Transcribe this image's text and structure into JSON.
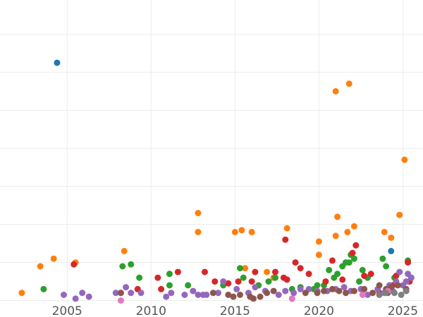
{
  "chart_data": {
    "type": "scatter",
    "title": "",
    "xlabel": "",
    "ylabel": "",
    "xlim": [
      2001.0,
      2026.2
    ],
    "ylim": [
      -1,
      79
    ],
    "x_ticks": [
      "2005",
      "2010",
      "2015",
      "2020",
      "2025"
    ],
    "x_tick_values": [
      2005,
      2010,
      2015,
      2020,
      2025
    ],
    "y_gridlines": [
      0,
      10,
      20,
      30,
      40,
      50,
      60,
      70
    ],
    "grid": true,
    "legend": "none",
    "series": [
      {
        "color": "#ff7f0e",
        "points": [
          [
            2002.3,
            2
          ],
          [
            2003.4,
            9
          ],
          [
            2004.2,
            11
          ],
          [
            2005.5,
            10
          ],
          [
            2008.4,
            13
          ],
          [
            2012.8,
            23
          ],
          [
            2012.8,
            18
          ],
          [
            2015.0,
            18
          ],
          [
            2015.4,
            18.5
          ],
          [
            2016.0,
            18
          ],
          [
            2015.6,
            8.5
          ],
          [
            2016.9,
            7.5
          ],
          [
            2017.3,
            6
          ],
          [
            2018.1,
            19
          ],
          [
            2020.0,
            15.5
          ],
          [
            2020.0,
            12
          ],
          [
            2021.0,
            55
          ],
          [
            2021.0,
            17
          ],
          [
            2021.1,
            22
          ],
          [
            2021.7,
            18
          ],
          [
            2021.8,
            57
          ],
          [
            2022.1,
            19.5
          ],
          [
            2023.9,
            18
          ],
          [
            2024.3,
            16.5
          ],
          [
            2024.8,
            22.5
          ],
          [
            2025.1,
            37
          ]
        ]
      },
      {
        "color": "#1f77b4",
        "points": [
          [
            2004.4,
            62.5
          ],
          [
            2024.3,
            13
          ]
        ]
      },
      {
        "color": "#2ca02c",
        "points": [
          [
            2003.6,
            3
          ],
          [
            2008.3,
            9
          ],
          [
            2008.8,
            9.5
          ],
          [
            2009.3,
            6
          ],
          [
            2011.1,
            7
          ],
          [
            2011.1,
            4
          ],
          [
            2012.2,
            4
          ],
          [
            2014.3,
            4
          ],
          [
            2015.3,
            8.5
          ],
          [
            2015.5,
            6
          ],
          [
            2016.4,
            4
          ],
          [
            2017.0,
            5
          ],
          [
            2017.4,
            6
          ],
          [
            2018.4,
            3
          ],
          [
            2018.9,
            3.5
          ],
          [
            2019.7,
            3
          ],
          [
            2019.9,
            4
          ],
          [
            2020.3,
            4
          ],
          [
            2020.6,
            8
          ],
          [
            2020.9,
            6
          ],
          [
            2021.1,
            7
          ],
          [
            2021.4,
            9
          ],
          [
            2021.6,
            10
          ],
          [
            2021.8,
            10
          ],
          [
            2021.9,
            12
          ],
          [
            2022.1,
            11
          ],
          [
            2022.4,
            5
          ],
          [
            2022.6,
            8
          ],
          [
            2022.9,
            6
          ],
          [
            2023.8,
            11
          ],
          [
            2024.0,
            9
          ],
          [
            2024.5,
            6
          ],
          [
            2025.3,
            10.5
          ],
          [
            2025.5,
            6
          ]
        ]
      },
      {
        "color": "#d62728",
        "points": [
          [
            2005.4,
            9.5
          ],
          [
            2009.2,
            3
          ],
          [
            2010.4,
            6
          ],
          [
            2010.6,
            3
          ],
          [
            2011.6,
            7.5
          ],
          [
            2013.2,
            7.5
          ],
          [
            2013.8,
            5
          ],
          [
            2014.6,
            4.5
          ],
          [
            2015.2,
            5
          ],
          [
            2016.0,
            5
          ],
          [
            2016.2,
            7.5
          ],
          [
            2017.4,
            7.5
          ],
          [
            2017.9,
            6
          ],
          [
            2018.0,
            16
          ],
          [
            2018.1,
            5.5
          ],
          [
            2018.6,
            10
          ],
          [
            2018.9,
            8.5
          ],
          [
            2019.4,
            7
          ],
          [
            2020.4,
            5
          ],
          [
            2020.8,
            10.5
          ],
          [
            2021.4,
            5.5
          ],
          [
            2022.0,
            12.5
          ],
          [
            2022.2,
            14.5
          ],
          [
            2022.7,
            6.5
          ],
          [
            2023.1,
            7
          ],
          [
            2023.6,
            2
          ],
          [
            2024.1,
            2
          ],
          [
            2024.4,
            4
          ],
          [
            2024.6,
            6.5
          ],
          [
            2025.3,
            10
          ],
          [
            2025.4,
            5
          ]
        ]
      },
      {
        "color": "#9467bd",
        "points": [
          [
            2004.8,
            1.5
          ],
          [
            2005.5,
            0.5
          ],
          [
            2005.9,
            2
          ],
          [
            2006.3,
            1
          ],
          [
            2007.9,
            2
          ],
          [
            2008.2,
            2
          ],
          [
            2008.5,
            3.5
          ],
          [
            2008.8,
            2
          ],
          [
            2009.4,
            2
          ],
          [
            2010.9,
            1
          ],
          [
            2011.2,
            2
          ],
          [
            2012.0,
            1.5
          ],
          [
            2012.5,
            2.5
          ],
          [
            2012.8,
            1.5
          ],
          [
            2013.1,
            1.5
          ],
          [
            2013.3,
            1.5
          ],
          [
            2014.0,
            2
          ],
          [
            2014.3,
            5
          ],
          [
            2015.1,
            3
          ],
          [
            2015.8,
            2
          ],
          [
            2016.2,
            3.5
          ],
          [
            2016.8,
            2.5
          ],
          [
            2017.6,
            1.5
          ],
          [
            2018.0,
            2.5
          ],
          [
            2018.5,
            2
          ],
          [
            2018.9,
            3
          ],
          [
            2019.4,
            3
          ],
          [
            2019.9,
            2.5
          ],
          [
            2020.5,
            2.5
          ],
          [
            2021.0,
            3
          ],
          [
            2021.5,
            3.5
          ],
          [
            2021.9,
            2.5
          ],
          [
            2022.5,
            3
          ],
          [
            2022.9,
            1.5
          ],
          [
            2023.5,
            3
          ],
          [
            2023.9,
            2
          ],
          [
            2024.2,
            4
          ],
          [
            2024.4,
            2.5
          ],
          [
            2024.6,
            5
          ],
          [
            2024.8,
            7.5
          ],
          [
            2025.0,
            4
          ],
          [
            2025.2,
            5
          ],
          [
            2025.3,
            7
          ],
          [
            2025.5,
            6
          ]
        ]
      },
      {
        "color": "#8c564b",
        "points": [
          [
            2008.2,
            2
          ],
          [
            2013.7,
            2
          ],
          [
            2014.6,
            1.5
          ],
          [
            2014.9,
            1
          ],
          [
            2015.3,
            1.5
          ],
          [
            2015.9,
            1
          ],
          [
            2016.1,
            0.5
          ],
          [
            2016.5,
            1
          ],
          [
            2016.9,
            2
          ],
          [
            2017.3,
            2.5
          ],
          [
            2018.4,
            0.5
          ],
          [
            2019.2,
            2
          ],
          [
            2019.9,
            2
          ],
          [
            2020.3,
            2.5
          ],
          [
            2020.8,
            3
          ],
          [
            2021.2,
            2.5
          ],
          [
            2021.6,
            2
          ],
          [
            2022.1,
            2.5
          ],
          [
            2022.7,
            3
          ],
          [
            2023.2,
            2
          ],
          [
            2023.6,
            4
          ],
          [
            2024.0,
            3
          ],
          [
            2024.3,
            3.5
          ],
          [
            2024.7,
            4
          ],
          [
            2025.2,
            3
          ]
        ]
      },
      {
        "color": "#e377c2",
        "points": [
          [
            2008.2,
            0
          ],
          [
            2018.4,
            0.5
          ],
          [
            2022.6,
            1.5
          ],
          [
            2024.1,
            2.5
          ]
        ]
      },
      {
        "color": "#7f7f7f",
        "points": [
          [
            2023.6,
            1.5
          ],
          [
            2024.0,
            2
          ],
          [
            2024.5,
            2
          ],
          [
            2024.9,
            1.5
          ],
          [
            2025.2,
            2.5
          ]
        ]
      }
    ]
  }
}
